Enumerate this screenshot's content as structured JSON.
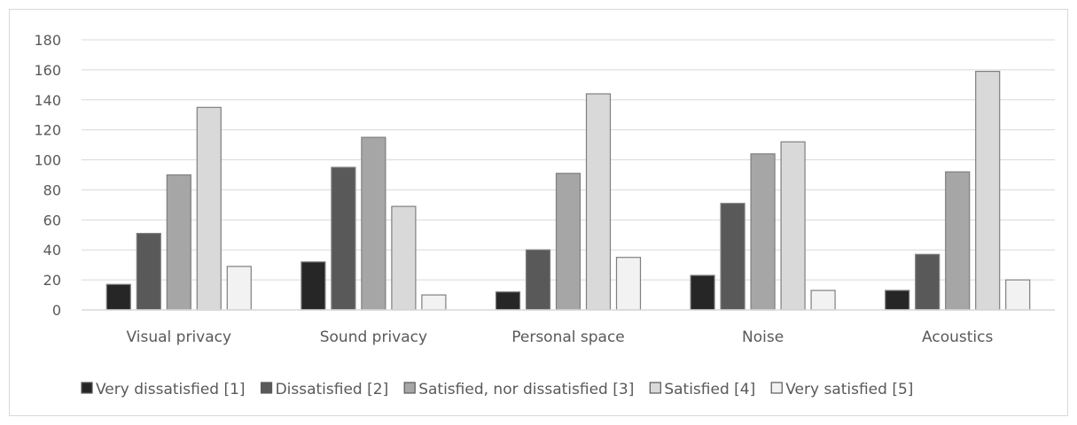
{
  "chart_data": {
    "type": "bar",
    "title": "",
    "xlabel": "",
    "ylabel": "",
    "ylim": [
      0,
      180
    ],
    "yticks": [
      0,
      20,
      40,
      60,
      80,
      100,
      120,
      140,
      160,
      180
    ],
    "grid": true,
    "legend_position": "bottom",
    "categories": [
      "Visual privacy",
      "Sound privacy",
      "Personal space",
      "Noise",
      "Acoustics"
    ],
    "series": [
      {
        "name": "Very dissatisfied [1]",
        "color": "#262626",
        "values": [
          17,
          32,
          12,
          23,
          13
        ]
      },
      {
        "name": "Dissatisfied [2]",
        "color": "#595959",
        "values": [
          51,
          95,
          40,
          71,
          37
        ]
      },
      {
        "name": "Satisfied, nor dissatisfied [3]",
        "color": "#a6a6a6",
        "values": [
          90,
          115,
          91,
          104,
          92
        ]
      },
      {
        "name": "Satisfied [4]",
        "color": "#d9d9d9",
        "values": [
          135,
          69,
          144,
          112,
          159
        ]
      },
      {
        "name": "Very satisfied [5]",
        "color": "#f2f2f2",
        "values": [
          29,
          10,
          35,
          13,
          20
        ]
      }
    ]
  }
}
